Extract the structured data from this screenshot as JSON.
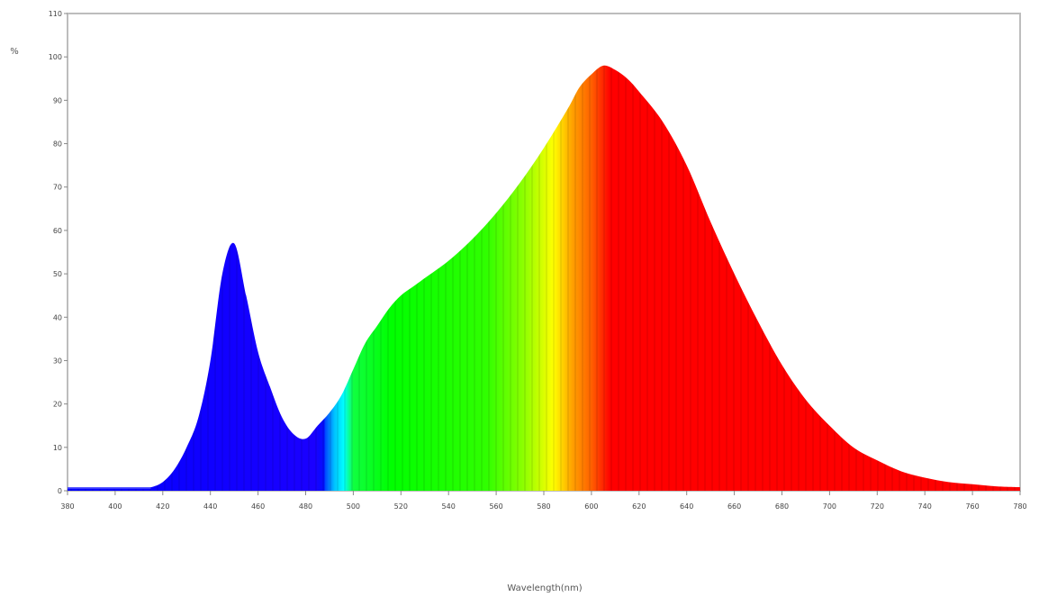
{
  "chart_data": {
    "type": "area",
    "title": "",
    "ylabel": "%",
    "xlabel": "Wavelength(nm)",
    "xlim": [
      380,
      780
    ],
    "ylim": [
      0,
      110
    ],
    "xticks": [
      380,
      400,
      420,
      440,
      460,
      480,
      500,
      520,
      540,
      560,
      580,
      600,
      620,
      640,
      660,
      680,
      700,
      720,
      740,
      760,
      780
    ],
    "yticks": [
      0,
      10,
      20,
      30,
      40,
      50,
      60,
      70,
      80,
      90,
      100,
      110
    ],
    "grid": false,
    "legend": "none",
    "fill": "visible-spectrum",
    "series": [
      {
        "x": [
          380,
          400,
          410,
          415,
          420,
          425,
          430,
          435,
          440,
          445,
          450,
          455,
          460,
          465,
          470,
          475,
          480,
          485,
          490,
          495,
          500,
          505,
          510,
          515,
          520,
          525,
          530,
          540,
          550,
          560,
          570,
          580,
          590,
          595,
          600,
          605,
          610,
          615,
          620,
          630,
          640,
          650,
          660,
          670,
          680,
          690,
          700,
          710,
          720,
          730,
          740,
          750,
          760,
          770,
          780
        ],
        "y": [
          0.5,
          0.5,
          0.5,
          0.8,
          2,
          5,
          10,
          17,
          30,
          50,
          57,
          45,
          32,
          24,
          17,
          13,
          12,
          15,
          18,
          22,
          28,
          34,
          38,
          42,
          45,
          47,
          49,
          53,
          58,
          64,
          71,
          79,
          88,
          93,
          96,
          98,
          97,
          95,
          92,
          85,
          75,
          62,
          50,
          39,
          29,
          21,
          15,
          10,
          7,
          4.5,
          3,
          2,
          1.5,
          1,
          0.8
        ]
      }
    ]
  }
}
